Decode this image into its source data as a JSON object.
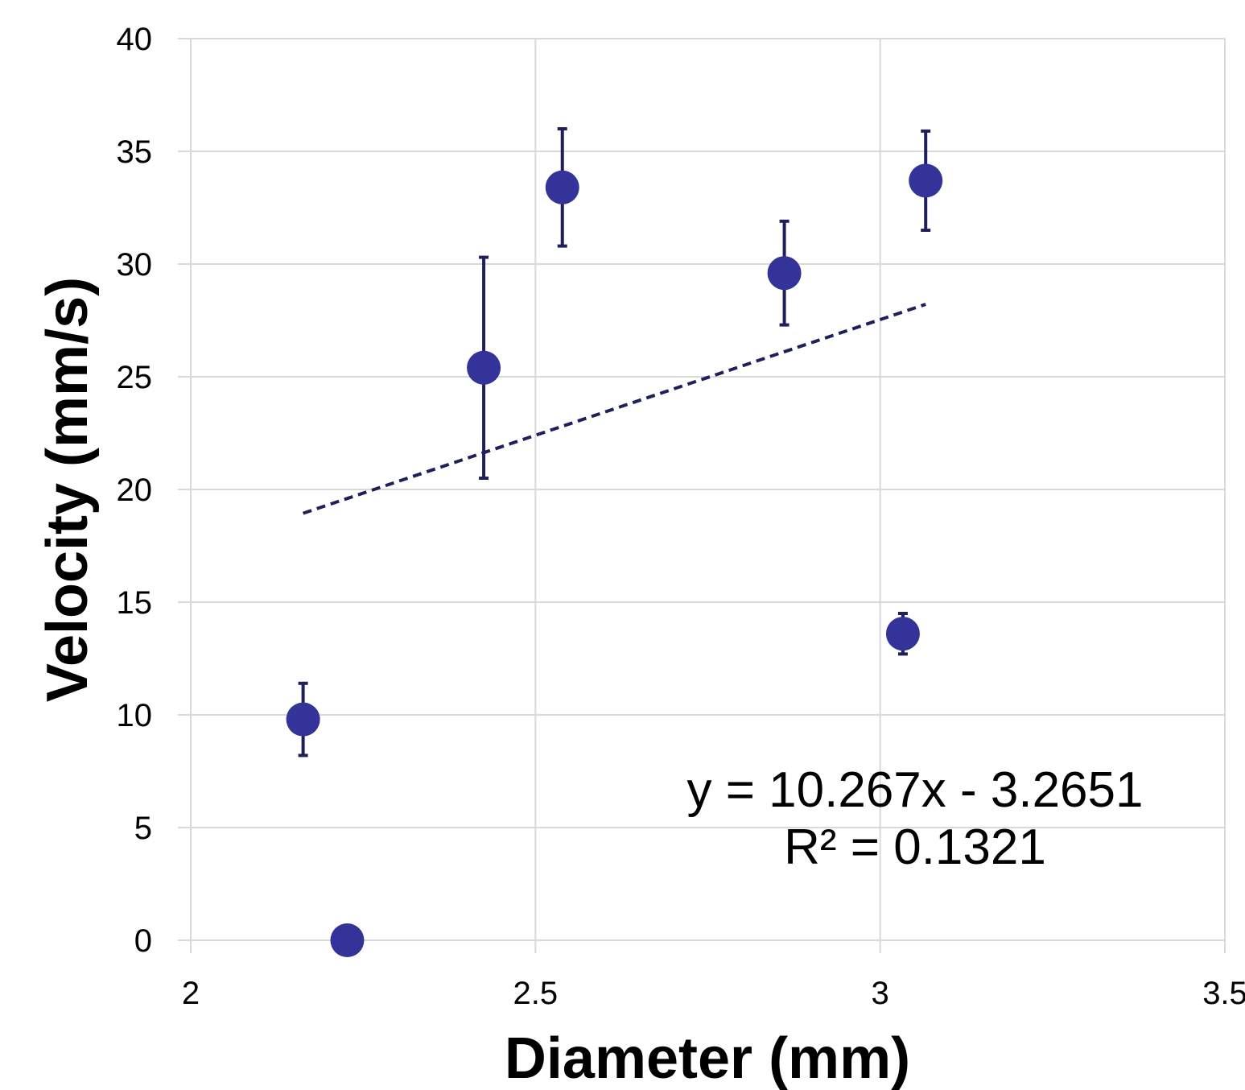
{
  "chart_data": {
    "type": "scatter",
    "title": "",
    "xlabel": "Diameter (mm)",
    "ylabel": "Velocity (mm/s)",
    "xlim": [
      2,
      3.5
    ],
    "ylim": [
      0,
      40
    ],
    "x_ticks": [
      2,
      2.5,
      3,
      3.5
    ],
    "x_tick_labels": [
      "2",
      "2.5",
      "3",
      "3.5"
    ],
    "y_ticks": [
      0,
      5,
      10,
      15,
      20,
      25,
      30,
      35,
      40
    ],
    "y_tick_labels": [
      "0",
      "5",
      "10",
      "15",
      "20",
      "25",
      "30",
      "35",
      "40"
    ],
    "grid": true,
    "legend": "none",
    "series": [
      {
        "color": "#333399",
        "points": [
          {
            "x": 2.163,
            "y": 9.8,
            "err_low": 1.6,
            "err_high": 1.6
          },
          {
            "x": 2.227,
            "y": 0.0,
            "err_low": 0,
            "err_high": 0
          },
          {
            "x": 2.425,
            "y": 25.4,
            "err_low": 4.9,
            "err_high": 4.9
          },
          {
            "x": 2.539,
            "y": 33.4,
            "err_low": 2.6,
            "err_high": 2.6
          },
          {
            "x": 2.861,
            "y": 29.6,
            "err_low": 2.3,
            "err_high": 2.3
          },
          {
            "x": 3.033,
            "y": 13.6,
            "err_low": 0.9,
            "err_high": 0.9
          },
          {
            "x": 3.066,
            "y": 33.7,
            "err_low": 2.2,
            "err_high": 2.2
          }
        ]
      }
    ],
    "error_bar_color": "#1f1f5c",
    "trendline": {
      "type": "linear",
      "slope": 10.267,
      "intercept": -3.2651,
      "x_range": [
        2.163,
        3.066
      ],
      "color": "#1f1f5c",
      "style": "dashed"
    },
    "annotations": [
      "y = 10.267x - 3.2651",
      "R² = 0.1321"
    ]
  }
}
